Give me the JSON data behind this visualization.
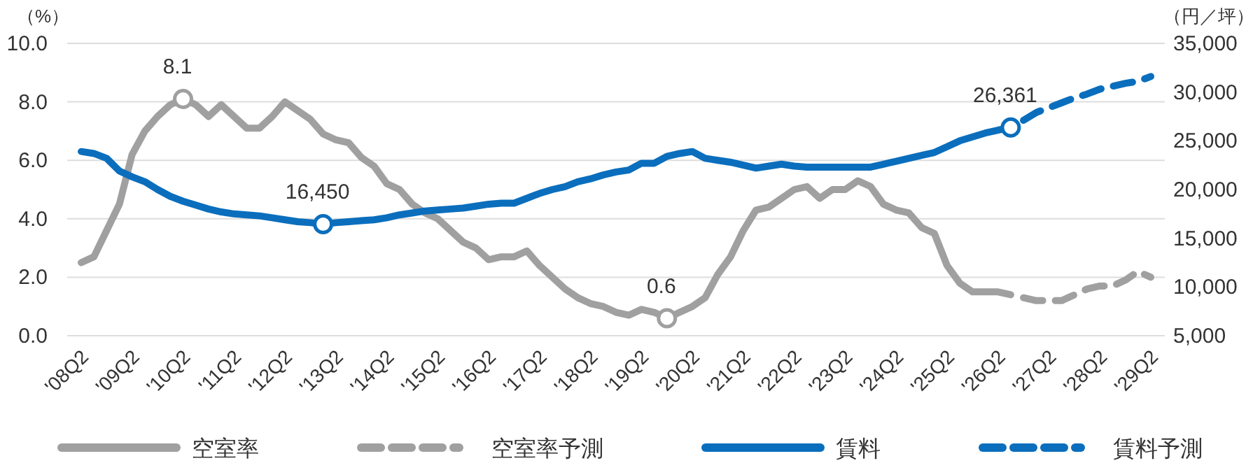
{
  "chart_data": {
    "type": "line",
    "ylabel": "（%）",
    "y2label": "（円／坪）",
    "categories": [
      "'08Q2",
      null,
      null,
      null,
      "'09Q2",
      null,
      null,
      null,
      "'10Q2",
      null,
      null,
      null,
      "'11Q2",
      null,
      null,
      null,
      "'12Q2",
      null,
      null,
      null,
      "'13Q2",
      null,
      null,
      null,
      "'14Q2",
      null,
      null,
      null,
      "'15Q2",
      null,
      null,
      null,
      "'16Q2",
      null,
      null,
      null,
      "'17Q2",
      null,
      null,
      null,
      "'18Q2",
      null,
      null,
      null,
      "'19Q2",
      null,
      null,
      null,
      "'20Q2",
      null,
      null,
      null,
      "'21Q2",
      null,
      null,
      null,
      "'22Q2",
      null,
      null,
      null,
      "'23Q2",
      null,
      null,
      null,
      "'24Q2",
      null,
      null,
      null,
      "'25Q2",
      null,
      null,
      null,
      "'26Q2",
      null,
      null,
      null,
      "'27Q2",
      null,
      null,
      null,
      "'28Q2",
      null,
      null,
      null,
      "'29Q2"
    ],
    "series": [
      {
        "name": "空室率",
        "color": "#a0a0a0",
        "line_style": "solid",
        "values": [
          2.5,
          2.7,
          3.6,
          4.5,
          6.2,
          7.0,
          7.5,
          7.9,
          8.1,
          7.9,
          7.5,
          7.9,
          7.5,
          7.1,
          7.1,
          7.5,
          8.0,
          7.7,
          7.4,
          6.9,
          6.7,
          6.6,
          6.1,
          5.8,
          5.2,
          5.0,
          4.5,
          4.2,
          4.0,
          3.6,
          3.2,
          3.0,
          2.6,
          2.7,
          2.7,
          2.9,
          2.4,
          2.0,
          1.6,
          1.3,
          1.1,
          1.0,
          0.8,
          0.7,
          0.9,
          0.8,
          0.6,
          0.8,
          1.0,
          1.3,
          2.1,
          2.7,
          3.6,
          4.3,
          4.4,
          4.7,
          5.0,
          5.1,
          4.7,
          5.0,
          5.0,
          5.3,
          5.1,
          4.5,
          4.3,
          4.2,
          3.7,
          3.5,
          2.4,
          1.8,
          1.5,
          1.5,
          1.5,
          1.4,
          null,
          null,
          null,
          null,
          null,
          null,
          null,
          null,
          null,
          null,
          null
        ]
      },
      {
        "name": "空室率予測",
        "color": "#a0a0a0",
        "line_style": "dashed",
        "values": [
          null,
          null,
          null,
          null,
          null,
          null,
          null,
          null,
          null,
          null,
          null,
          null,
          null,
          null,
          null,
          null,
          null,
          null,
          null,
          null,
          null,
          null,
          null,
          null,
          null,
          null,
          null,
          null,
          null,
          null,
          null,
          null,
          null,
          null,
          null,
          null,
          null,
          null,
          null,
          null,
          null,
          null,
          null,
          null,
          null,
          null,
          null,
          null,
          null,
          null,
          null,
          null,
          null,
          null,
          null,
          null,
          null,
          null,
          null,
          null,
          null,
          null,
          null,
          null,
          null,
          null,
          null,
          null,
          null,
          null,
          null,
          null,
          null,
          null,
          1.3,
          1.2,
          1.2,
          1.2,
          1.4,
          1.6,
          1.7,
          1.7,
          1.9,
          2.2,
          2.0
        ]
      },
      {
        "name": "賃料",
        "color": "#0a6ebd",
        "line_style": "solid",
        "axis": "y2",
        "values": [
          23900,
          23700,
          23200,
          21900,
          21300,
          20800,
          20000,
          19300,
          18800,
          18400,
          18000,
          17700,
          17500,
          17400,
          17300,
          17100,
          16900,
          16700,
          16600,
          16450,
          16600,
          16700,
          16800,
          16900,
          17100,
          17400,
          17600,
          17800,
          17900,
          18000,
          18100,
          18300,
          18500,
          18600,
          18600,
          19100,
          19600,
          20000,
          20300,
          20800,
          21100,
          21500,
          21800,
          22000,
          22700,
          22700,
          23400,
          23700,
          23900,
          23200,
          23000,
          22800,
          22500,
          22200,
          22400,
          22600,
          22400,
          22300,
          22300,
          22300,
          22300,
          22300,
          22300,
          22600,
          22900,
          23200,
          23500,
          23800,
          24400,
          25000,
          25400,
          25800,
          26100,
          26361,
          null,
          null,
          null,
          null,
          null,
          null,
          null,
          null,
          null,
          null,
          null
        ]
      },
      {
        "name": "賃料予測",
        "color": "#0a6ebd",
        "line_style": "dashed",
        "axis": "y2",
        "values": [
          null,
          null,
          null,
          null,
          null,
          null,
          null,
          null,
          null,
          null,
          null,
          null,
          null,
          null,
          null,
          null,
          null,
          null,
          null,
          null,
          null,
          null,
          null,
          null,
          null,
          null,
          null,
          null,
          null,
          null,
          null,
          null,
          null,
          null,
          null,
          null,
          null,
          null,
          null,
          null,
          null,
          null,
          null,
          null,
          null,
          null,
          null,
          null,
          null,
          null,
          null,
          null,
          null,
          null,
          null,
          null,
          null,
          null,
          null,
          null,
          null,
          null,
          null,
          null,
          null,
          null,
          null,
          null,
          null,
          null,
          null,
          null,
          null,
          null,
          27100,
          27900,
          28400,
          28900,
          29400,
          29800,
          30300,
          30600,
          30900,
          31100,
          31600
        ]
      }
    ],
    "ylim": [
      0,
      10
    ],
    "yticks": [
      {
        "value": 0,
        "label": "0.0"
      },
      {
        "value": 2,
        "label": "2.0"
      },
      {
        "value": 4,
        "label": "4.0"
      },
      {
        "value": 6,
        "label": "6.0"
      },
      {
        "value": 8,
        "label": "8.0"
      },
      {
        "value": 10,
        "label": "10.0"
      }
    ],
    "y2lim": [
      5000,
      35000
    ],
    "y2ticks": [
      {
        "value": 5000,
        "label": "5,000"
      },
      {
        "value": 10000,
        "label": "10,000"
      },
      {
        "value": 15000,
        "label": "15,000"
      },
      {
        "value": 20000,
        "label": "20,000"
      },
      {
        "value": 25000,
        "label": "25,000"
      },
      {
        "value": 30000,
        "label": "30,000"
      },
      {
        "value": 35000,
        "label": "35,000"
      }
    ],
    "grid": "y",
    "legend": "bottom",
    "annotations": [
      "8.1",
      "16,450",
      "0.6",
      "26,361"
    ]
  }
}
